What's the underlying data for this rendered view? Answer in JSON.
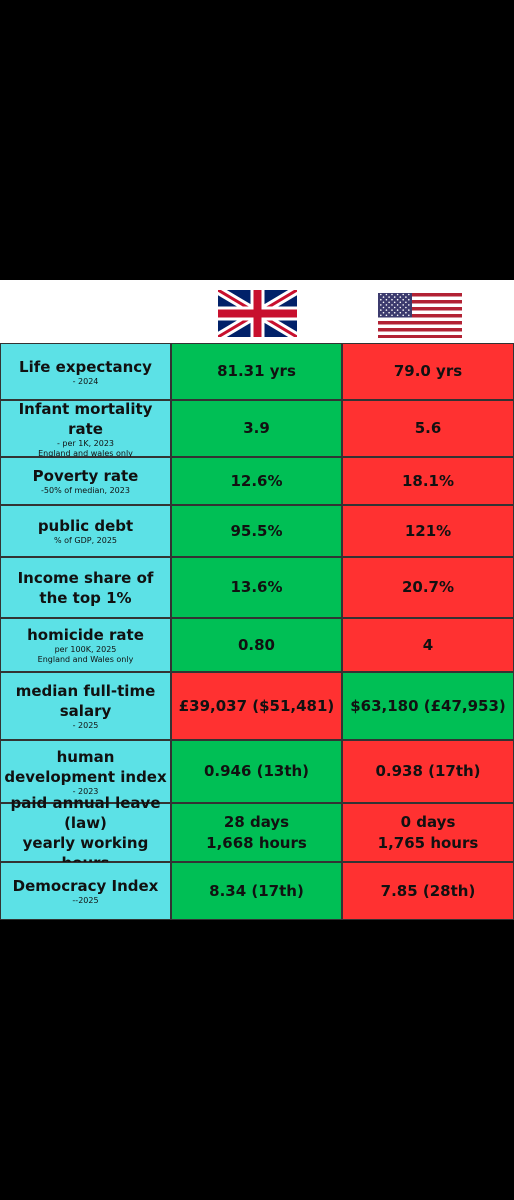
{
  "table": {
    "rows": [
      {
        "label": [
          "Life expectancy"
        ],
        "notes": [
          "- 2024"
        ],
        "uk": [
          "81.31 yrs"
        ],
        "us": [
          "79.0 yrs"
        ]
      },
      {
        "label": [
          "Infant mortality rate"
        ],
        "notes": [
          "- per 1K, 2023",
          "England and wales only"
        ],
        "uk": [
          "3.9"
        ],
        "us": [
          "5.6"
        ]
      },
      {
        "label": [
          "Poverty rate"
        ],
        "notes": [
          "-50% of median, 2023"
        ],
        "uk": [
          "12.6%"
        ],
        "us": [
          "18.1%"
        ]
      },
      {
        "label": [
          "public debt"
        ],
        "notes": [
          "% of GDP, 2025"
        ],
        "uk": [
          "95.5%"
        ],
        "us": [
          "121%"
        ]
      },
      {
        "label": [
          "Income share of the top 1%"
        ],
        "notes": [],
        "uk": [
          "13.6%"
        ],
        "us": [
          "20.7%"
        ]
      },
      {
        "label": [
          "homicide rate"
        ],
        "notes": [
          "per 100K, 2025",
          "England and Wales only"
        ],
        "uk": [
          "0.80"
        ],
        "us": [
          "4"
        ]
      },
      {
        "label": [
          "median full-time salary"
        ],
        "notes": [
          "- 2025"
        ],
        "uk": [
          "£39,037 ($51,481)"
        ],
        "us": [
          "$63,180 (£47,953)"
        ]
      },
      {
        "label": [
          "human development index"
        ],
        "notes": [
          "- 2023"
        ],
        "uk": [
          "0.946 (13th)"
        ],
        "us": [
          "0.938 (17th)"
        ]
      },
      {
        "label": [
          "paid annual leave (law)",
          "yearly working hours"
        ],
        "notes": [],
        "uk": [
          "28 days",
          "1,668 hours"
        ],
        "us": [
          "0 days",
          "1,765 hours"
        ]
      },
      {
        "label": [
          "Democracy Index"
        ],
        "notes": [
          "--2025"
        ],
        "uk": [
          "8.34 (17th)"
        ],
        "us": [
          "7.85 (28th)"
        ]
      }
    ]
  }
}
